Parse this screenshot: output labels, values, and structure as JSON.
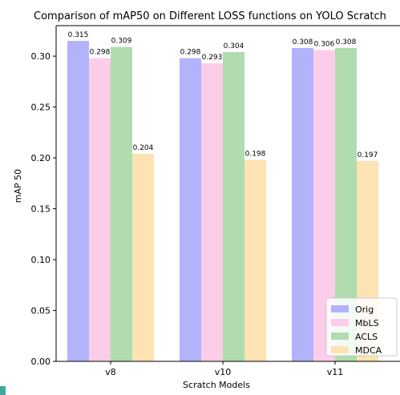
{
  "chart_data": {
    "type": "bar",
    "title": "Comparison of mAP50 on Different LOSS functions on YOLO Scratch",
    "xlabel": "Scratch Models",
    "ylabel": "mAP 50",
    "categories": [
      "v8",
      "v10",
      "v11"
    ],
    "ylim": [
      0,
      0.33
    ],
    "yticks": [
      "0.00",
      "0.05",
      "0.10",
      "0.15",
      "0.20",
      "0.25",
      "0.30"
    ],
    "grid": false,
    "legend_position": "bottom-right",
    "series": [
      {
        "name": "Orig",
        "color": "#b3b3fb",
        "values": [
          0.315,
          0.298,
          0.308
        ],
        "labels": [
          "0.315",
          "0.298",
          "0.308"
        ]
      },
      {
        "name": "MbLS",
        "color": "#fbcde8",
        "values": [
          0.298,
          0.293,
          0.306
        ],
        "labels": [
          "0.298",
          "0.293",
          "0.306"
        ]
      },
      {
        "name": "ACLS",
        "color": "#b0dcb0",
        "values": [
          0.309,
          0.304,
          0.308
        ],
        "labels": [
          "0.309",
          "0.304",
          "0.308"
        ]
      },
      {
        "name": "MDCA",
        "color": "#fde2b3",
        "values": [
          0.204,
          0.198,
          0.197
        ],
        "labels": [
          "0.204",
          "0.198",
          "0.197"
        ]
      }
    ]
  }
}
